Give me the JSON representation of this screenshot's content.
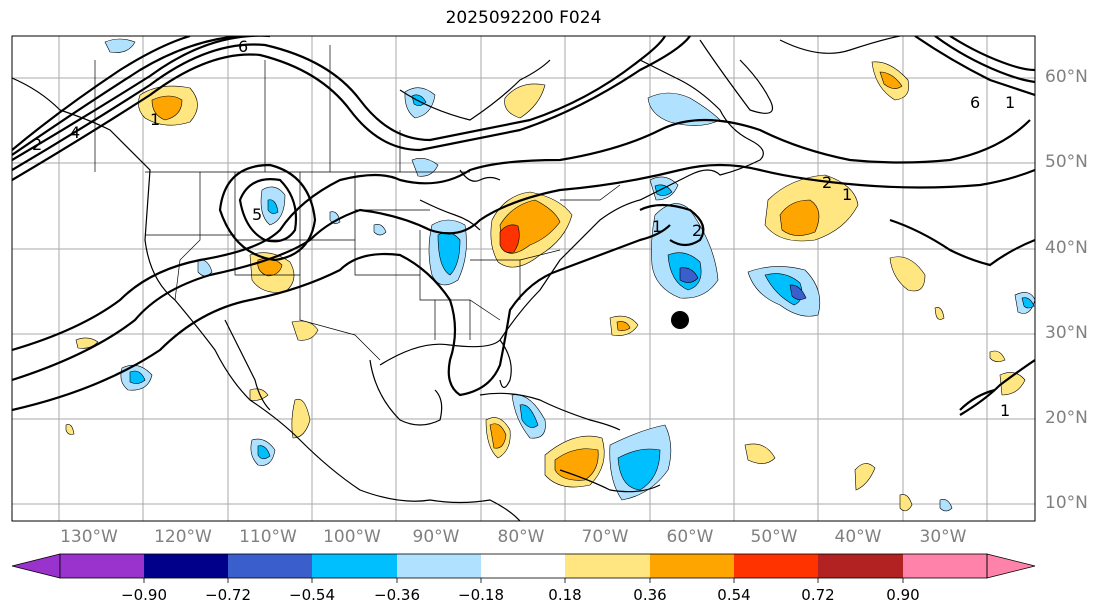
{
  "title": "2025092200 F024",
  "lat_labels": [
    "60°N",
    "50°N",
    "40°N",
    "30°N",
    "20°N",
    "10°N"
  ],
  "lon_labels": [
    "130°W",
    "120°W",
    "110°W",
    "100°W",
    "90°W",
    "80°W",
    "70°W",
    "60°W",
    "50°W",
    "40°W",
    "30°W"
  ],
  "contour_labels": [
    "6",
    "4",
    "1",
    "2",
    "1",
    "2",
    "6",
    "1",
    "1",
    "1",
    "2",
    "5"
  ],
  "colorbar": {
    "ticks": [
      "−0.90",
      "−0.72",
      "−0.54",
      "−0.36",
      "−0.18",
      "0.18",
      "0.36",
      "0.54",
      "0.72",
      "0.90"
    ],
    "colors": [
      "#9a32cd",
      "#00008b",
      "#3a5fcd",
      "#00bfff",
      "#b0e2ff",
      "#ffffff",
      "#ffe680",
      "#ffa500",
      "#ff3300",
      "#b22222",
      "#ff82ab"
    ]
  },
  "marker": {
    "symbol": "black-dot",
    "lat": 31.8,
    "lon": -61
  }
}
